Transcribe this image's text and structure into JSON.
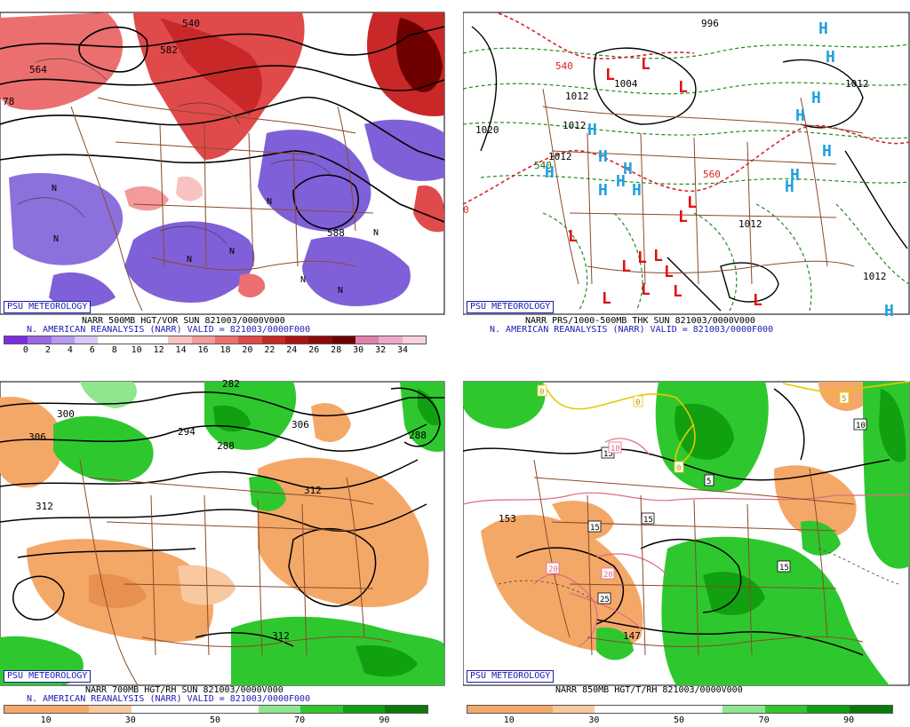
{
  "panels": [
    {
      "credit": "PSU METEOROLOGY",
      "caption_line1": "NARR 500MB HGT/VOR SUN 821003/0000V000",
      "caption_line2": "N. AMERICAN REANALYSIS (NARR) VALID = 821003/0000F000",
      "contour_labels": [
        "540",
        "582",
        "564",
        "588",
        "78"
      ],
      "scale_ticks": [
        "0",
        "2",
        "4",
        "6",
        "8",
        "10",
        "12",
        "14",
        "16",
        "18",
        "20",
        "22",
        "24",
        "26",
        "28",
        "30",
        "32",
        "34"
      ],
      "scale_colors": [
        "#7b2fe0",
        "#9c68e6",
        "#b79aee",
        "#d9c8f5",
        "#ffffff",
        "#ffffff",
        "#ffffff",
        "#f8c2c2",
        "#f39a9a",
        "#ec6f6f",
        "#e04a4a",
        "#c82828",
        "#a81414",
        "#8c0a0a",
        "#6e0000",
        "#e080b0",
        "#f0a8c8",
        "#f8d0e0"
      ],
      "low_center_marker": "N"
    },
    {
      "credit": "PSU METEOROLOGY",
      "caption_line1": "NARR PRS/1000-500MB THK SUN 821003/0000V000",
      "caption_line2": "N. AMERICAN REANALYSIS (NARR) VALID = 821003/0000F000",
      "contour_labels": [
        "996",
        "1004",
        "1012",
        "1020",
        "1012",
        "1012",
        "1012",
        "1012",
        "1012",
        "540",
        "540",
        "560",
        "0"
      ],
      "high_marker": "H",
      "low_marker": "L"
    },
    {
      "credit": "PSU METEOROLOGY",
      "caption_line1": "NARR 700MB HGT/RH SUN 821003/0000V000",
      "caption_line2": "N. AMERICAN REANALYSIS (NARR) VALID = 821003/0000F000",
      "contour_labels": [
        "300",
        "306",
        "312",
        "294",
        "288",
        "306",
        "312",
        "312",
        "288",
        "282"
      ],
      "scale_ticks": [
        "10",
        "30",
        "50",
        "70",
        "90"
      ],
      "scale_colors": [
        "#f4a868",
        "#f4a868",
        "#f8c8a0",
        "#ffffff",
        "#ffffff",
        "#ffffff",
        "#8ee68e",
        "#2ec82e",
        "#10a010",
        "#0a7a0a"
      ]
    },
    {
      "credit": "PSU METEOROLOGY",
      "caption_line1": "NARR 850MB HGT/T/RH 821003/0000V000",
      "caption_line2": "",
      "contour_labels": [
        "153",
        "147",
        "15",
        "15",
        "15",
        "15",
        "5",
        "10",
        "20",
        "20",
        "25",
        "0",
        "0",
        "0",
        "5",
        "10"
      ],
      "scale_ticks": [
        "10",
        "30",
        "50",
        "70",
        "90"
      ],
      "scale_colors": [
        "#f4a868",
        "#f4a868",
        "#f8c8a0",
        "#ffffff",
        "#ffffff",
        "#ffffff",
        "#8ee68e",
        "#2ec82e",
        "#10a010",
        "#0a7a0a"
      ]
    }
  ]
}
